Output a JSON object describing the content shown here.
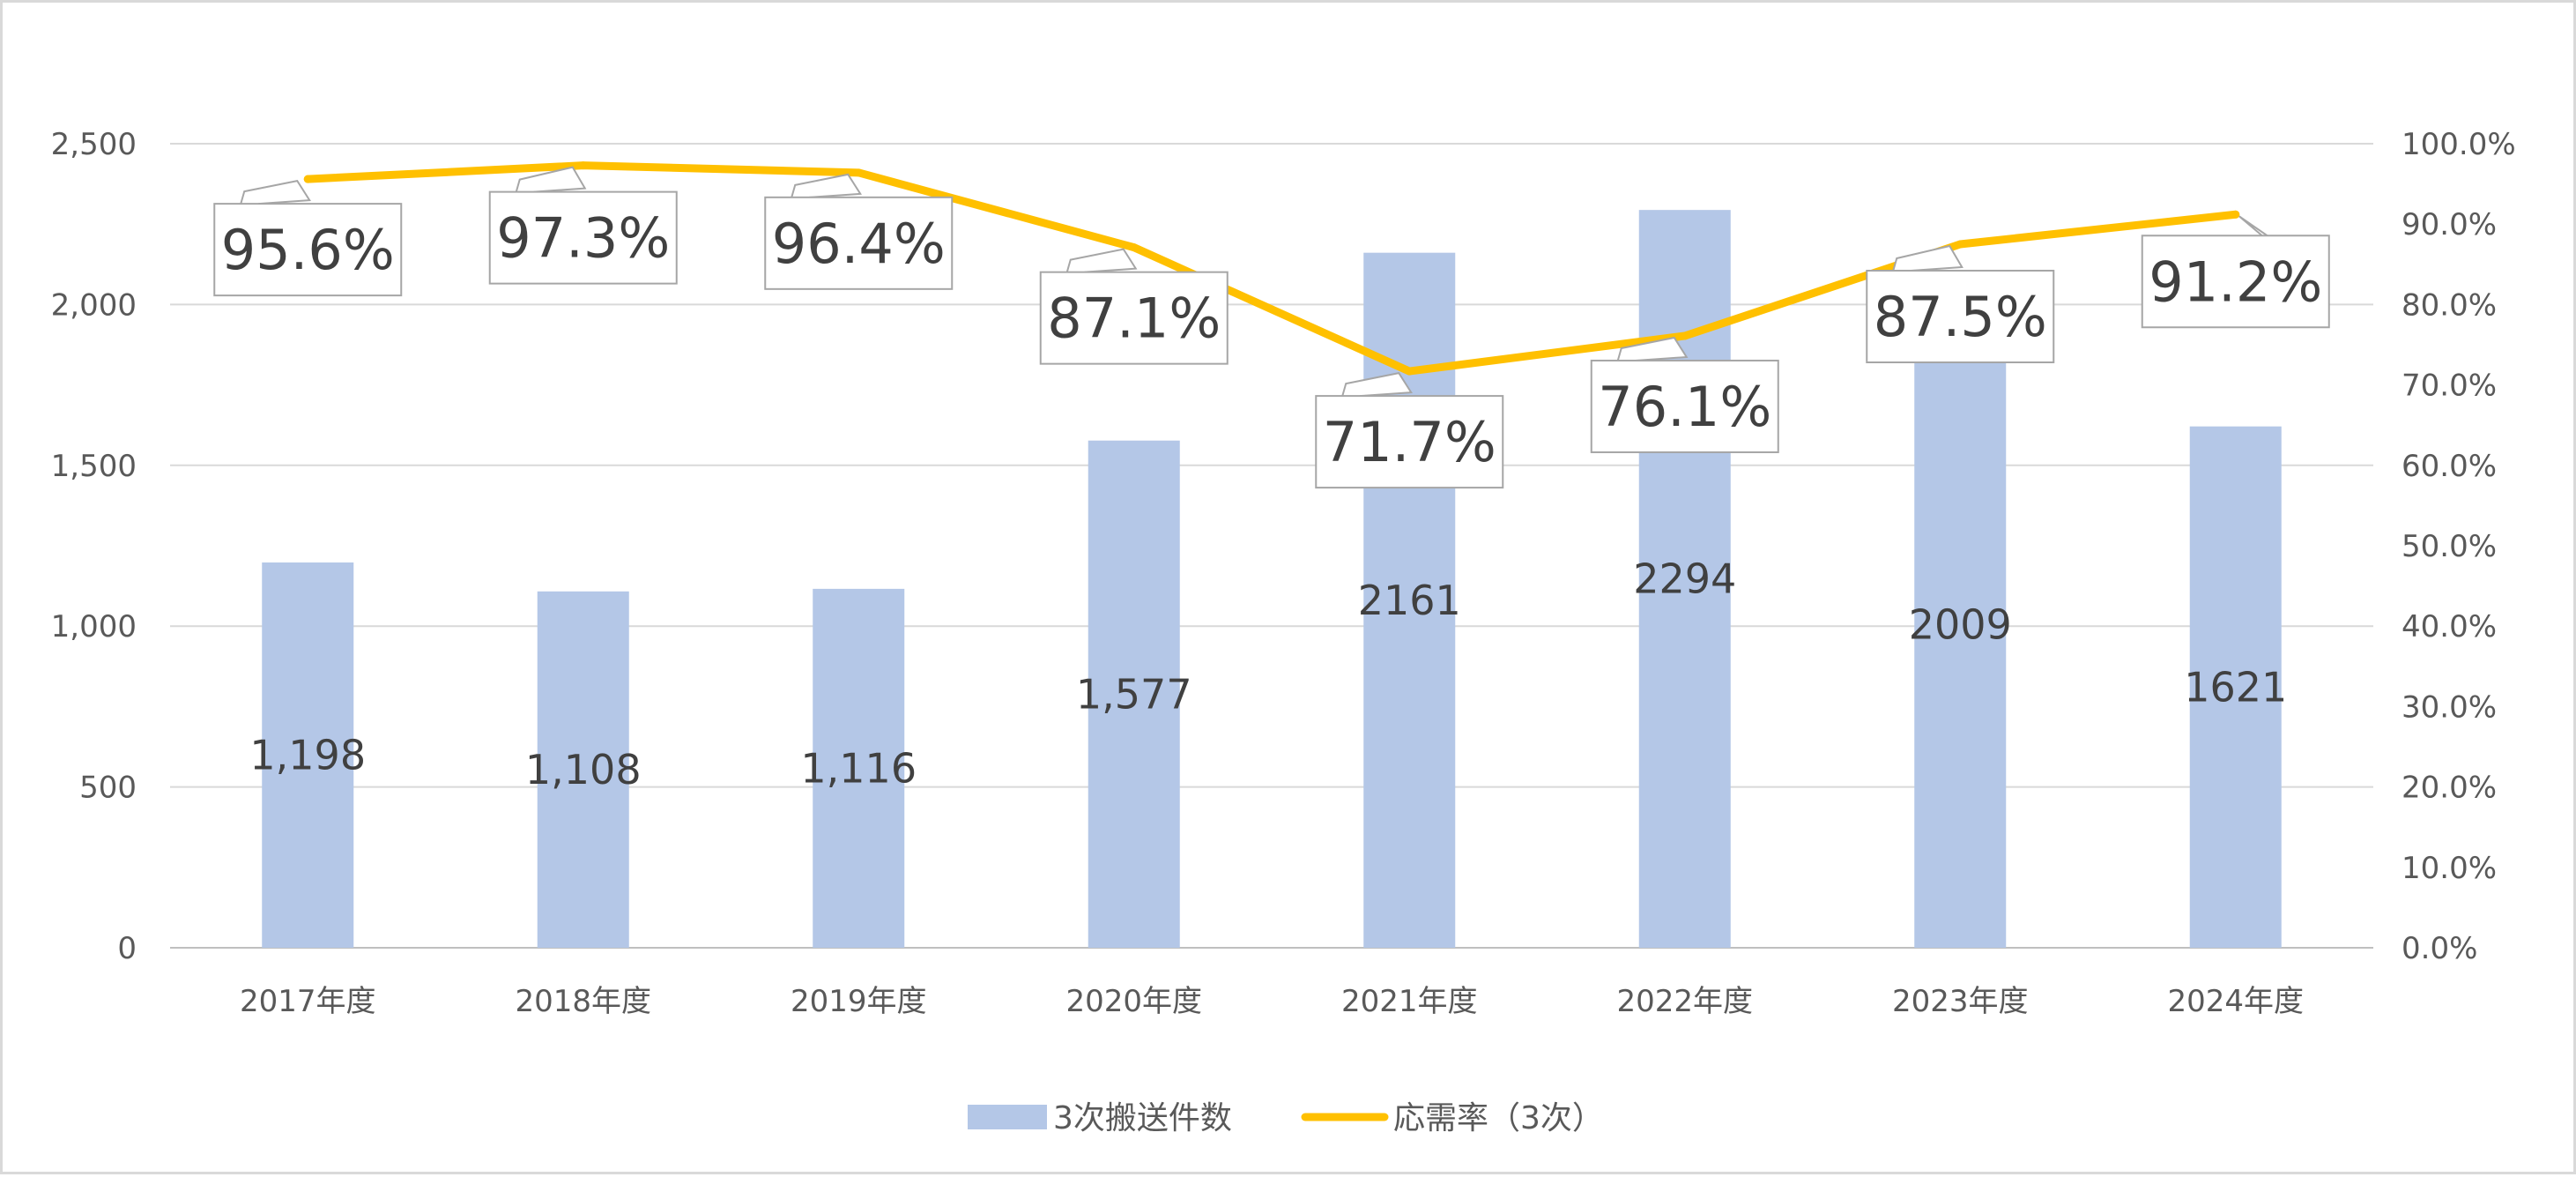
{
  "chart_data": {
    "type": "bar",
    "categories": [
      "2017年度",
      "2018年度",
      "2019年度",
      "2020年度",
      "2021年度",
      "2022年度",
      "2023年度",
      "2024年度"
    ],
    "series": [
      {
        "name": "3次搬送件数",
        "type": "bar",
        "axis": "left",
        "color": "#b4c7e7",
        "values": [
          1198,
          1108,
          1116,
          1577,
          2161,
          2294,
          2009,
          1621
        ],
        "labels": [
          "1,198",
          "1,108",
          "1,116",
          "1,577",
          "2161",
          "2294",
          "2009",
          "1621"
        ]
      },
      {
        "name": "応需率（3次）",
        "type": "line",
        "axis": "right",
        "color": "#ffc000",
        "values": [
          95.6,
          97.3,
          96.4,
          87.1,
          71.7,
          76.1,
          87.5,
          91.2
        ],
        "labels": [
          "95.6%",
          "97.3%",
          "96.4%",
          "87.1%",
          "71.7%",
          "76.1%",
          "87.5%",
          "91.2%"
        ]
      }
    ],
    "left_axis": {
      "ylim": [
        0,
        2500
      ],
      "ticks": [
        0,
        500,
        1000,
        1500,
        2000,
        2500
      ],
      "tick_labels": [
        "0",
        "500",
        "1,000",
        "1,500",
        "2,000",
        "2,500"
      ]
    },
    "right_axis": {
      "ylim": [
        0,
        100
      ],
      "ticks": [
        0,
        10,
        20,
        30,
        40,
        50,
        60,
        70,
        80,
        90,
        100
      ],
      "tick_labels": [
        "0.0%",
        "10.0%",
        "20.0%",
        "30.0%",
        "40.0%",
        "50.0%",
        "60.0%",
        "70.0%",
        "80.0%",
        "90.0%",
        "100.0%"
      ]
    },
    "grid": true,
    "legend_position": "bottom",
    "title": "",
    "xlabel": "",
    "ylabel": ""
  }
}
